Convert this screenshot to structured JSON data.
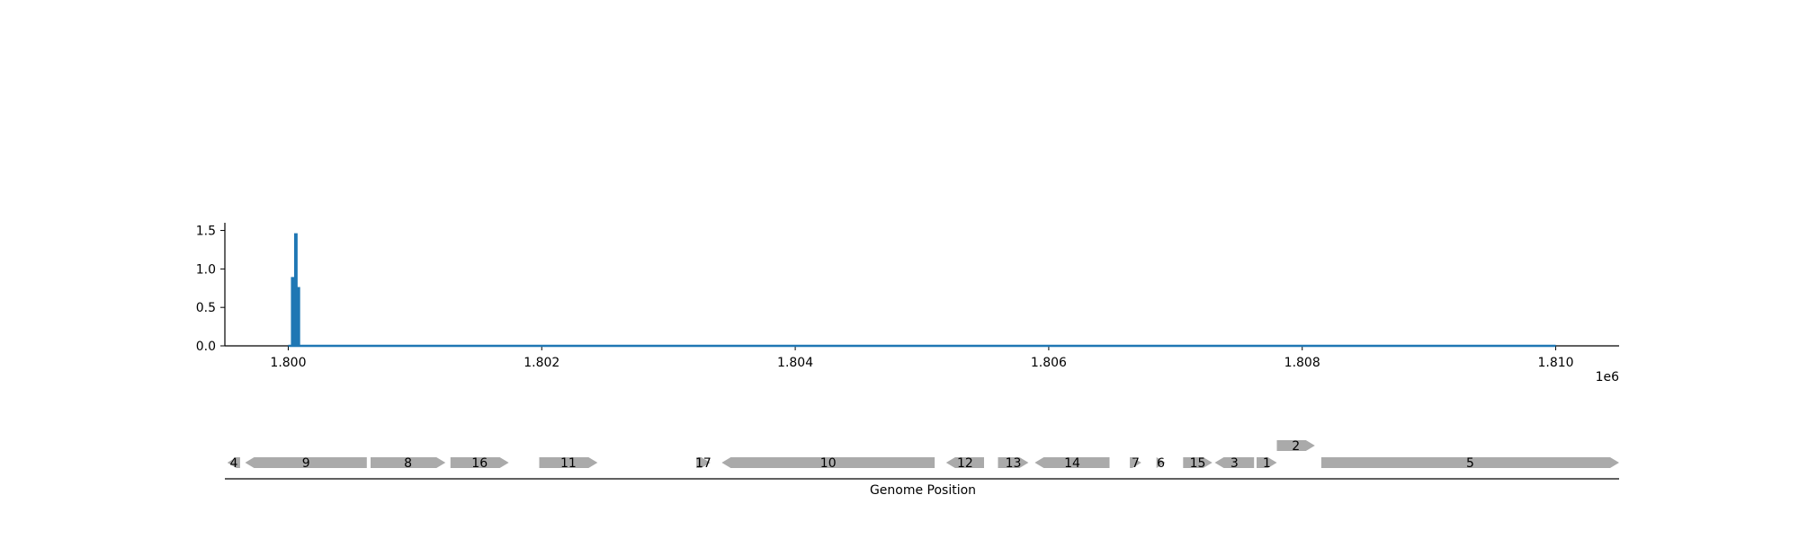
{
  "chart_data": [
    {
      "type": "line",
      "xlim": [
        1799500,
        1810500
      ],
      "ylim": [
        0,
        1.6
      ],
      "x_tick_labels": [
        {
          "value": 1800000,
          "label": "1.800"
        },
        {
          "value": 1802000,
          "label": "1.802"
        },
        {
          "value": 1804000,
          "label": "1.804"
        },
        {
          "value": 1806000,
          "label": "1.806"
        },
        {
          "value": 1808000,
          "label": "1.808"
        },
        {
          "value": 1810000,
          "label": "1.810"
        }
      ],
      "x_offset_label": "1e6",
      "y_tick_labels": [
        {
          "value": 0.0,
          "label": "0.0"
        },
        {
          "value": 0.5,
          "label": "0.5"
        },
        {
          "value": 1.0,
          "label": "1.0"
        },
        {
          "value": 1.5,
          "label": "1.5"
        }
      ],
      "series": [
        {
          "color": "#1f77b4",
          "x": [
            1800000,
            1800030,
            1800030,
            1800040,
            1800040,
            1800055,
            1800055,
            1800065,
            1800065,
            1800075,
            1800075,
            1800085,
            1800085,
            1810000
          ],
          "y": [
            0,
            0,
            0.88,
            0.88,
            0,
            0,
            1.45,
            1.45,
            0,
            0,
            0.75,
            0.75,
            0,
            0
          ]
        }
      ]
    },
    {
      "type": "gene-track",
      "xlabel": "Genome Position",
      "xlim": [
        1799500,
        1810500
      ],
      "feature_color": "#aaaaaa",
      "genes": [
        {
          "label": "4",
          "start": 1799520,
          "end": 1799620,
          "strand": -1,
          "row": 0
        },
        {
          "label": "9",
          "start": 1799660,
          "end": 1800620,
          "strand": -1,
          "row": 0
        },
        {
          "label": "8",
          "start": 1800650,
          "end": 1801240,
          "strand": 1,
          "row": 0
        },
        {
          "label": "16",
          "start": 1801280,
          "end": 1801740,
          "strand": 1,
          "row": 0
        },
        {
          "label": "11",
          "start": 1801980,
          "end": 1802440,
          "strand": 1,
          "row": 0
        },
        {
          "label": "17",
          "start": 1803220,
          "end": 1803330,
          "strand": 1,
          "row": 0
        },
        {
          "label": "10",
          "start": 1803420,
          "end": 1805100,
          "strand": -1,
          "row": 0
        },
        {
          "label": "12",
          "start": 1805190,
          "end": 1805490,
          "strand": -1,
          "row": 0
        },
        {
          "label": "13",
          "start": 1805600,
          "end": 1805840,
          "strand": 1,
          "row": 0
        },
        {
          "label": "14",
          "start": 1805890,
          "end": 1806480,
          "strand": -1,
          "row": 0
        },
        {
          "label": "7",
          "start": 1806640,
          "end": 1806730,
          "strand": 1,
          "row": 0
        },
        {
          "label": "6",
          "start": 1806850,
          "end": 1806920,
          "strand": 1,
          "row": 0
        },
        {
          "label": "15",
          "start": 1807060,
          "end": 1807290,
          "strand": 1,
          "row": 0
        },
        {
          "label": "3",
          "start": 1807310,
          "end": 1807620,
          "strand": -1,
          "row": 0
        },
        {
          "label": "1",
          "start": 1807640,
          "end": 1807800,
          "strand": 1,
          "row": 0
        },
        {
          "label": "2",
          "start": 1807800,
          "end": 1808100,
          "strand": 1,
          "row": 1
        },
        {
          "label": "5",
          "start": 1808150,
          "end": 1810500,
          "strand": 1,
          "row": 0
        }
      ]
    }
  ]
}
